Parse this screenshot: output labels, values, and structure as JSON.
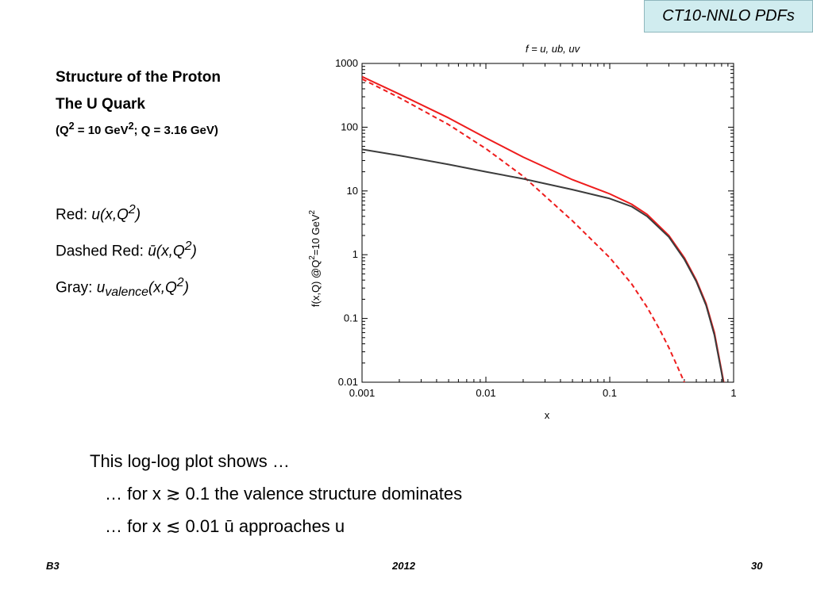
{
  "header_tag": "CT10-NNLO PDFs",
  "heading": {
    "line1": "Structure of the Proton",
    "line2": "The U Quark",
    "line3_prefix": "(Q",
    "line3_sup1": "2",
    "line3_mid": " = 10 GeV",
    "line3_sup2": "2",
    "line3_suffix": "; Q = 3.16 GeV)"
  },
  "legend_text": {
    "red_label": "Red: ",
    "red_func": "u(x,Q",
    "red_sup": "2",
    "red_close": ")",
    "dashed_label": "Dashed Red: ",
    "dashed_func": "ū(x,Q",
    "dashed_sup": "2",
    "dashed_close": ")",
    "gray_label": "Gray: ",
    "gray_u": "u",
    "gray_sub": "valence",
    "gray_func": "(x,Q",
    "gray_sup": "2",
    "gray_close": ")"
  },
  "bullets": {
    "line1": "This log-log plot shows …",
    "line2": "…  for  x ≳ 0.1   the valence structure dominates",
    "line3": "…  for  x ≲ 0.01   ū approaches u"
  },
  "footer": {
    "left": "B3",
    "center": "2012",
    "right": "30"
  },
  "chart_data": {
    "type": "line",
    "title": "f  =  u, ub, uv",
    "xlabel": "x",
    "ylabel_prefix": "f(x,Q) @Q",
    "ylabel_sup": "2",
    "ylabel_suffix": "=10 GeV",
    "ylabel_sup2": "2",
    "x_scale": "log",
    "y_scale": "log",
    "xlim": [
      0.001,
      1
    ],
    "ylim": [
      0.01,
      1000
    ],
    "x_ticks": [
      "0.001",
      "0.01",
      "0.1",
      "1"
    ],
    "y_ticks": [
      "1000",
      "100",
      "10",
      "1",
      "0.1",
      "0.01"
    ],
    "grid": false,
    "series": [
      {
        "color": "#ee1c1c",
        "dash": "solid",
        "x": [
          0.001,
          0.002,
          0.005,
          0.01,
          0.02,
          0.05,
          0.1,
          0.15,
          0.2,
          0.3,
          0.4,
          0.5,
          0.6,
          0.7,
          0.8,
          0.85
        ],
        "y": [
          620,
          330,
          140,
          68,
          34,
          15,
          9.0,
          6.2,
          4.3,
          2.0,
          0.9,
          0.4,
          0.17,
          0.06,
          0.015,
          0.008
        ]
      },
      {
        "color": "#ee1c1c",
        "dash": "dashed",
        "x": [
          0.001,
          0.002,
          0.005,
          0.01,
          0.02,
          0.05,
          0.1,
          0.15,
          0.2,
          0.25,
          0.3,
          0.35,
          0.4,
          0.45
        ],
        "y": [
          570,
          290,
          110,
          46,
          17,
          3.4,
          0.9,
          0.35,
          0.15,
          0.07,
          0.035,
          0.018,
          0.01,
          0.004
        ]
      },
      {
        "color": "#3c3c3c",
        "dash": "solid",
        "x": [
          0.001,
          0.002,
          0.005,
          0.01,
          0.02,
          0.05,
          0.1,
          0.15,
          0.2,
          0.3,
          0.4,
          0.5,
          0.6,
          0.7,
          0.8,
          0.85
        ],
        "y": [
          45,
          36,
          26,
          20,
          15.5,
          10.5,
          7.6,
          5.7,
          4.0,
          1.9,
          0.85,
          0.38,
          0.16,
          0.055,
          0.014,
          0.007
        ]
      }
    ]
  }
}
